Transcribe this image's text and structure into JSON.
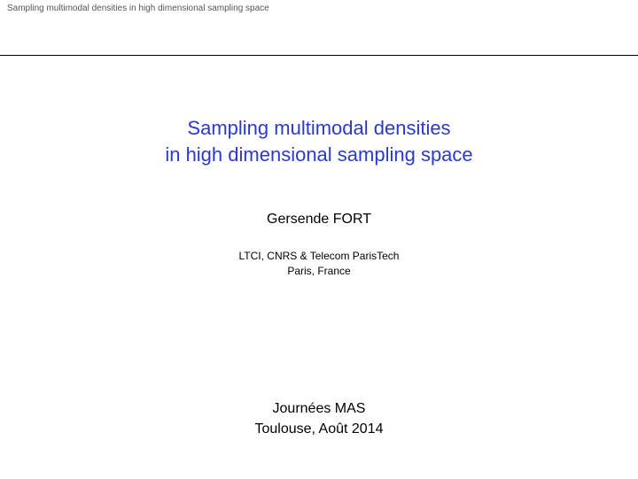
{
  "header": {
    "running_title": "Sampling multimodal densities  in high dimensional sampling space"
  },
  "title": {
    "line1": "Sampling multimodal densities",
    "line2": "in high dimensional sampling space",
    "color": "#2a39d1",
    "fontsize": 22
  },
  "author": {
    "name": "Gersende FORT",
    "fontsize": 16
  },
  "affiliation": {
    "line1": "LTCI, CNRS & Telecom ParisTech",
    "line2": "Paris, France",
    "fontsize": 12
  },
  "conference": {
    "line1": "Journées MAS",
    "line2": "Toulouse, Août 2014",
    "fontsize": 16
  },
  "colors": {
    "background": "#ffffff",
    "header_text": "#555555",
    "rule": "#000000",
    "body_text": "#000000"
  }
}
